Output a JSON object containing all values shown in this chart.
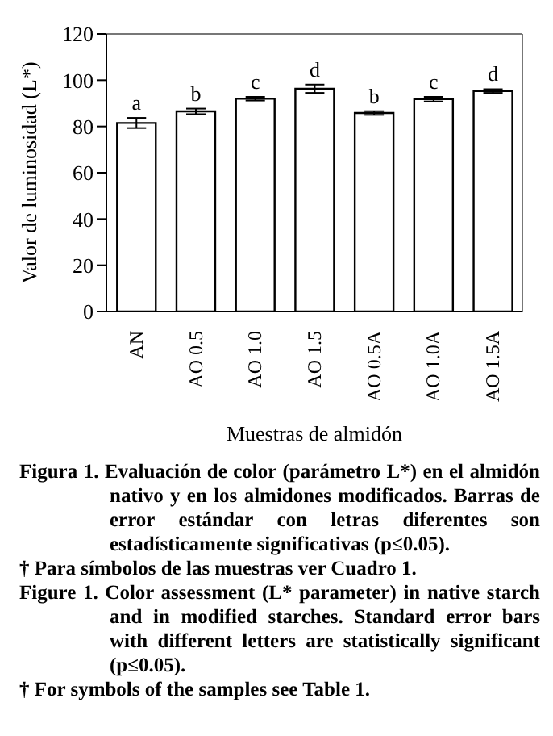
{
  "chart_data": {
    "type": "bar",
    "xlabel": "Muestras de almidón",
    "ylabel": "Valor de luminosidad (L*)",
    "categories": [
      "AN",
      "AO 0.5",
      "AO 1.0",
      "AO 1.5",
      "AO 0.5A",
      "AO 1.0A",
      "AO 1.5A"
    ],
    "values": [
      81.5,
      86.5,
      92,
      96.3,
      85.8,
      91.8,
      95.3
    ],
    "errors": [
      2.2,
      1.2,
      0.8,
      1.8,
      0.8,
      1,
      0.8
    ],
    "value_labels": [
      "a",
      "b",
      "c",
      "d",
      "b",
      "c",
      "d"
    ],
    "color": "#ffffff",
    "ylim": [
      0,
      120
    ],
    "yticks": [
      0,
      20,
      40,
      60,
      80,
      100,
      120
    ],
    "grid": false,
    "legend": false,
    "annotations": [
      "Figura 1.  Evaluación de color (parámetro L*) en el almidón nativo y en los almidones modificados. Barras de error estándar con letras diferentes son estadísticamente significativas (p≤0.05).",
      "† Para símbolos de las muestras ver Cuadro 1.",
      "Figure 1.  Color assessment (L* parameter) in native starch and in modified starches. Standard error bars with different letters are statistically significant (p≤0.05).",
      "† For symbols of the samples see Table 1."
    ]
  }
}
